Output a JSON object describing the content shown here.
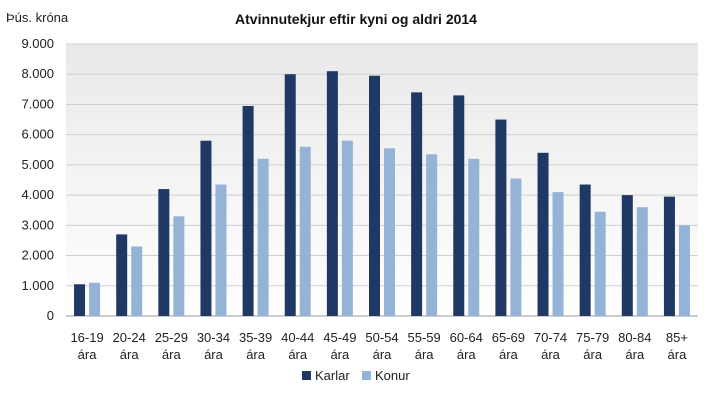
{
  "chart_data": {
    "type": "bar",
    "title": "Atvinnutekjur eftir kyni og aldri 2014",
    "ylabel": "Þús. króna",
    "xlabel": "",
    "ylim": [
      0,
      9000
    ],
    "yticks": [
      0,
      1000,
      2000,
      3000,
      4000,
      5000,
      6000,
      7000,
      8000,
      9000
    ],
    "ytick_labels": [
      "0",
      "1.000",
      "2.000",
      "3.000",
      "4.000",
      "5.000",
      "6.000",
      "7.000",
      "8.000",
      "9.000"
    ],
    "grid": true,
    "legend_position": "bottom",
    "categories": [
      [
        "16-19",
        "ára"
      ],
      [
        "20-24",
        "ára"
      ],
      [
        "25-29",
        "ára"
      ],
      [
        "30-34",
        "ára"
      ],
      [
        "35-39",
        "ára"
      ],
      [
        "40-44",
        "ára"
      ],
      [
        "45-49",
        "ára"
      ],
      [
        "50-54",
        "ára"
      ],
      [
        "55-59",
        "ára"
      ],
      [
        "60-64",
        "ára"
      ],
      [
        "65-69",
        "ára"
      ],
      [
        "70-74",
        "ára"
      ],
      [
        "75-79",
        "ára"
      ],
      [
        "80-84",
        "ára"
      ],
      [
        "85+",
        "ára"
      ]
    ],
    "series": [
      {
        "name": "Karlar",
        "color": "#1f3864",
        "values": [
          1050,
          2700,
          4200,
          5800,
          6950,
          8000,
          8100,
          7950,
          7400,
          7300,
          6500,
          5400,
          4350,
          4000,
          3950
        ]
      },
      {
        "name": "Konur",
        "color": "#95b3d7",
        "values": [
          1100,
          2300,
          3300,
          4350,
          5200,
          5600,
          5800,
          5550,
          5350,
          5200,
          4550,
          4100,
          3450,
          3600,
          3000
        ]
      }
    ]
  }
}
